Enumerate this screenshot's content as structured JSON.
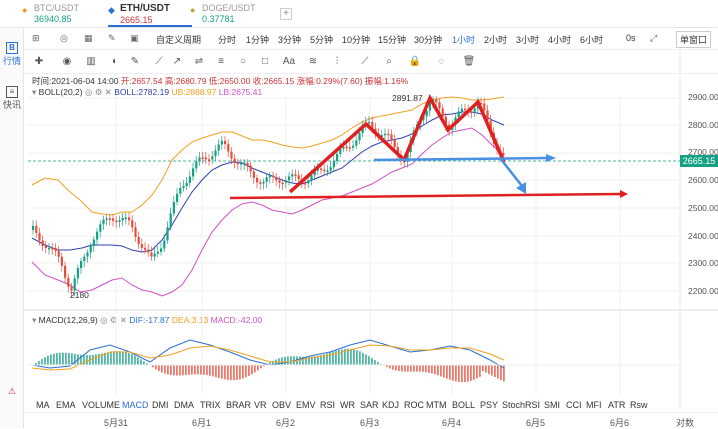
{
  "tabs": [
    {
      "symbol": "BTC/USDT",
      "price": "36940.85",
      "price_color": "#16a085",
      "active": false
    },
    {
      "symbol": "ETH/USDT",
      "price": "2665.15",
      "price_color": "#c33",
      "active": true
    },
    {
      "symbol": "DOGE/USDT",
      "price": "0.37781",
      "price_color": "#16a085",
      "active": false
    }
  ],
  "add_tab": "+",
  "sidebar": {
    "quotes": "行情",
    "news": "快讯"
  },
  "toolbar": {
    "custom": "自定义周期",
    "periods": [
      "分时",
      "1分钟",
      "3分钟",
      "5分钟",
      "10分钟",
      "15分钟",
      "30分钟",
      "1小时",
      "2小时",
      "3小时",
      "4小时",
      "6小时"
    ],
    "active_period": "1小时",
    "countdown": "0s",
    "mode": "单窗口"
  },
  "draw_tools": [
    "plus-icon",
    "circle-icon",
    "chart-icon",
    "eye-icon",
    "pencil-icon",
    "line-icon",
    "ray-icon",
    "hline-icon",
    "circle-shape-icon",
    "square-icon",
    "text-icon",
    "brush-icon",
    "lock-icon",
    "eye-off-icon",
    "trash-icon"
  ],
  "ohlc": {
    "time": "时间:2021-06-04 14:00",
    "open": "开:2657.54",
    "high": "高:2680.79",
    "low": "低:2650.00",
    "close": "收:2665.15",
    "change": "涨幅:0.29%(7.60)",
    "amp": "振幅:1.16%"
  },
  "boll": {
    "name": "BOLL(20,2)",
    "mid": "BOLL:2782.19",
    "ub": "UB:2888.97",
    "lb": "LB:2675.41"
  },
  "macd": {
    "name": "MACD(12,26,9)",
    "dif": "DIF:-17.87",
    "dea": "DEA:3.13",
    "macd": "MACD:-42.00"
  },
  "price_axis": [
    "2900.00",
    "2800.00",
    "2700.00",
    "2600.00",
    "2500.00",
    "2400.00",
    "2300.00",
    "2200.00"
  ],
  "current_price": "2665.15",
  "high_label": "2891.87",
  "low_label": "2180",
  "indicators": [
    "MA",
    "EMA",
    "VOLUME",
    "MACD",
    "DMI",
    "DMA",
    "TRIX",
    "BRAR",
    "VR",
    "OBV",
    "EMV",
    "RSI",
    "WR",
    "SAR",
    "KDJ",
    "ROC",
    "MTM",
    "BOLL",
    "PSY",
    "StochRSI",
    "SMI",
    "CCI",
    "MFI",
    "ATR",
    "Rsw"
  ],
  "active_indicator": "MACD",
  "dates": [
    "5月31",
    "6月1",
    "6月2",
    "6月3",
    "6月4",
    "6月5",
    "6月6",
    "对数"
  ],
  "colors": {
    "up": "#16a085",
    "down": "#e74c3c",
    "accent": "#2a6fd6",
    "ub": "#f0a020",
    "lb": "#d050c8",
    "mid": "#3040b0"
  }
}
